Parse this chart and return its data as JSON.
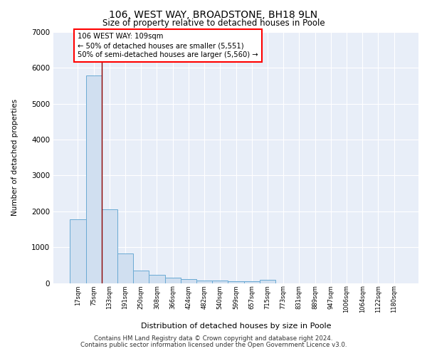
{
  "title1": "106, WEST WAY, BROADSTONE, BH18 9LN",
  "title2": "Size of property relative to detached houses in Poole",
  "xlabel": "Distribution of detached houses by size in Poole",
  "ylabel": "Number of detached properties",
  "categories": [
    "17sqm",
    "75sqm",
    "133sqm",
    "191sqm",
    "250sqm",
    "308sqm",
    "366sqm",
    "424sqm",
    "482sqm",
    "540sqm",
    "599sqm",
    "657sqm",
    "715sqm",
    "773sqm",
    "831sqm",
    "889sqm",
    "947sqm",
    "1006sqm",
    "1064sqm",
    "1122sqm",
    "1180sqm"
  ],
  "values": [
    1780,
    5780,
    2060,
    820,
    340,
    220,
    150,
    110,
    75,
    60,
    55,
    45,
    95,
    0,
    0,
    0,
    0,
    0,
    0,
    0,
    0
  ],
  "bar_color": "#d0dff0",
  "bar_edge_color": "#6aaad4",
  "red_line_x": 1.5,
  "annotation_text": "106 WEST WAY: 109sqm\n← 50% of detached houses are smaller (5,551)\n50% of semi-detached houses are larger (5,560) →",
  "ylim": [
    0,
    7000
  ],
  "yticks": [
    0,
    1000,
    2000,
    3000,
    4000,
    5000,
    6000,
    7000
  ],
  "plot_bg_color": "#e8eef8",
  "grid_color": "#ffffff",
  "footer1": "Contains HM Land Registry data © Crown copyright and database right 2024.",
  "footer2": "Contains public sector information licensed under the Open Government Licence v3.0."
}
